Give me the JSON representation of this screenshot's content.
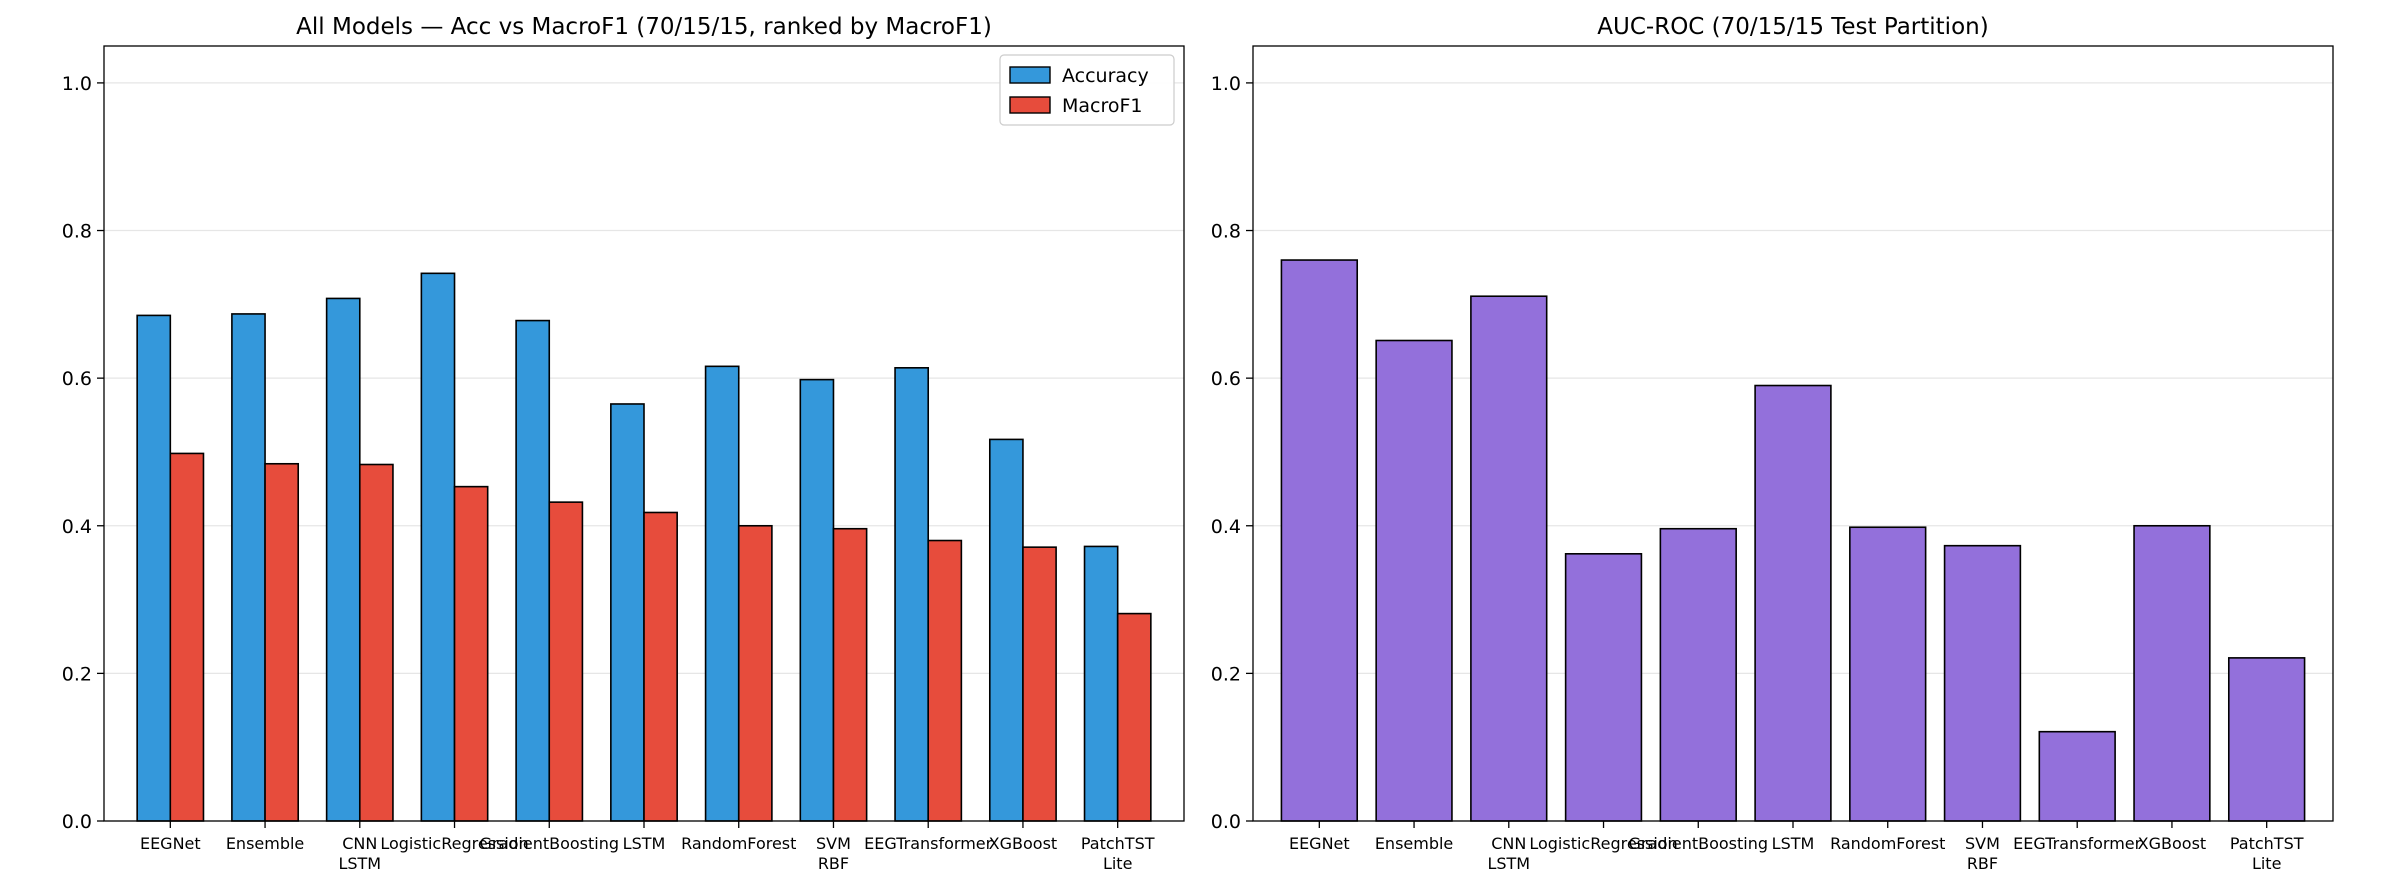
{
  "chart_data": [
    {
      "type": "bar",
      "title": "All Models — Acc vs MacroF1 (70/15/15, ranked by MacroF1)",
      "xlabel": "",
      "ylabel": "",
      "ylim": [
        0,
        1.05
      ],
      "yticks": [
        "0.0",
        "0.2",
        "0.4",
        "0.6",
        "0.8",
        "1.0"
      ],
      "yticks_values": [
        0,
        0.2,
        0.4,
        0.6,
        0.8,
        1.0
      ],
      "grid": "horizontal",
      "legend_position": "top-right",
      "categories": [
        [
          "EEGNet"
        ],
        [
          "Ensemble"
        ],
        [
          "CNN",
          "LSTM"
        ],
        [
          "LogisticRegression"
        ],
        [
          "GradientBoosting"
        ],
        [
          "LSTM"
        ],
        [
          "RandomForest"
        ],
        [
          "SVM",
          "RBF"
        ],
        [
          "EEGTransformer"
        ],
        [
          "XGBoost"
        ],
        [
          "PatchTST",
          "Lite"
        ]
      ],
      "series": [
        {
          "name": "Accuracy",
          "color": "#3498db",
          "values": [
            0.685,
            0.687,
            0.708,
            0.742,
            0.678,
            0.565,
            0.616,
            0.598,
            0.614,
            0.517,
            0.372
          ]
        },
        {
          "name": "MacroF1",
          "color": "#e74c3c",
          "values": [
            0.498,
            0.484,
            0.483,
            0.453,
            0.432,
            0.418,
            0.4,
            0.396,
            0.38,
            0.371,
            0.281
          ]
        }
      ]
    },
    {
      "type": "bar",
      "title": "AUC-ROC (70/15/15 Test Partition)",
      "xlabel": "",
      "ylabel": "",
      "ylim": [
        0,
        1.05
      ],
      "yticks": [
        "0.0",
        "0.2",
        "0.4",
        "0.6",
        "0.8",
        "1.0"
      ],
      "yticks_values": [
        0,
        0.2,
        0.4,
        0.6,
        0.8,
        1.0
      ],
      "grid": "horizontal",
      "categories": [
        [
          "EEGNet"
        ],
        [
          "Ensemble"
        ],
        [
          "CNN",
          "LSTM"
        ],
        [
          "LogisticRegression"
        ],
        [
          "GradientBoosting"
        ],
        [
          "LSTM"
        ],
        [
          "RandomForest"
        ],
        [
          "SVM",
          "RBF"
        ],
        [
          "EEGTransformer"
        ],
        [
          "XGBoost"
        ],
        [
          "PatchTST",
          "Lite"
        ]
      ],
      "series": [
        {
          "color": "#9370db",
          "values": [
            0.76,
            0.651,
            0.711,
            0.362,
            0.396,
            0.59,
            0.398,
            0.373,
            0.121,
            0.4,
            0.221
          ]
        }
      ]
    }
  ]
}
